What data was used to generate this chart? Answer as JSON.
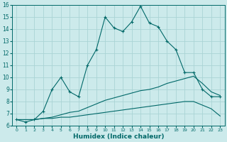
{
  "title": "",
  "xlabel": "Humidex (Indice chaleur)",
  "ylabel": "",
  "xlim": [
    -0.5,
    23.5
  ],
  "ylim": [
    6,
    16
  ],
  "background_color": "#cceaeb",
  "grid_color": "#aad4d5",
  "line_color": "#006868",
  "xticks": [
    0,
    1,
    2,
    3,
    4,
    5,
    6,
    7,
    8,
    9,
    10,
    11,
    12,
    13,
    14,
    15,
    16,
    17,
    18,
    19,
    20,
    21,
    22,
    23
  ],
  "yticks": [
    6,
    7,
    8,
    9,
    10,
    11,
    12,
    13,
    14,
    15,
    16
  ],
  "series1_x": [
    0,
    1,
    2,
    3,
    4,
    5,
    6,
    7,
    8,
    9,
    10,
    11,
    12,
    13,
    14,
    15,
    16,
    17,
    18,
    19,
    20,
    21,
    22,
    23
  ],
  "series1_y": [
    6.5,
    6.3,
    6.5,
    7.2,
    9.0,
    10.0,
    8.8,
    8.4,
    11.0,
    12.3,
    15.0,
    14.1,
    13.8,
    14.6,
    15.9,
    14.5,
    14.2,
    13.0,
    12.3,
    10.4,
    10.4,
    9.0,
    8.4,
    8.4
  ],
  "series2_x": [
    0,
    1,
    2,
    3,
    4,
    5,
    6,
    7,
    8,
    9,
    10,
    11,
    12,
    13,
    14,
    15,
    16,
    17,
    18,
    19,
    20,
    21,
    22,
    23
  ],
  "series2_y": [
    6.5,
    6.5,
    6.5,
    6.6,
    6.7,
    6.9,
    7.1,
    7.2,
    7.5,
    7.8,
    8.1,
    8.3,
    8.5,
    8.7,
    8.9,
    9.0,
    9.2,
    9.5,
    9.7,
    9.9,
    10.1,
    9.5,
    8.8,
    8.5
  ],
  "series3_x": [
    0,
    1,
    2,
    3,
    4,
    5,
    6,
    7,
    8,
    9,
    10,
    11,
    12,
    13,
    14,
    15,
    16,
    17,
    18,
    19,
    20,
    21,
    22,
    23
  ],
  "series3_y": [
    6.5,
    6.5,
    6.5,
    6.6,
    6.6,
    6.7,
    6.7,
    6.8,
    6.9,
    7.0,
    7.1,
    7.2,
    7.3,
    7.4,
    7.5,
    7.6,
    7.7,
    7.8,
    7.9,
    8.0,
    8.0,
    7.7,
    7.4,
    6.8
  ]
}
